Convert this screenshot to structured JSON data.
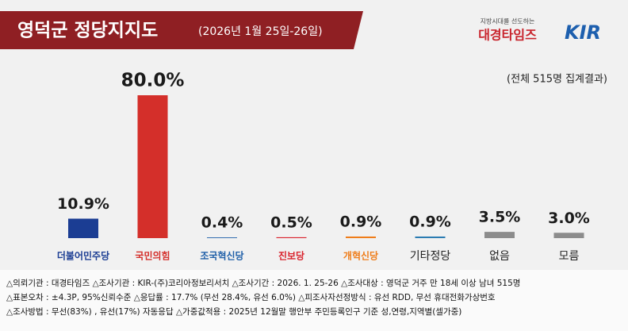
{
  "chart_data": {
    "type": "bar",
    "title": "영덕군 정당지지도",
    "subtitle": "(2026년 1월 25일-26일)",
    "logos": [
      "지방시대를 선도하는",
      "대경타임즈",
      "KIR"
    ],
    "note": "(전체 515명 집계결과)",
    "categories": [
      "더불어민주당",
      "국민의힘",
      "조국혁신당",
      "진보당",
      "개혁신당",
      "기타정당",
      "없음",
      "모름"
    ],
    "values": [
      10.9,
      80.0,
      0.4,
      0.5,
      0.9,
      0.9,
      3.5,
      3.0
    ],
    "value_labels": [
      "10.9%",
      "80.0%",
      "0.4%",
      "0.5%",
      "0.9%",
      "0.9%",
      "3.5%",
      "3.0%"
    ],
    "colors": [
      "#1b3d93",
      "#d42f2a",
      "#1f5fa8",
      "#d9232d",
      "#ef7d1a",
      "#2b7cb2",
      "#8c8c8c",
      "#8c8c8c"
    ],
    "label_colors": [
      "#1b3d93",
      "#d42f2a",
      "#1f5fa8",
      "#d9232d",
      "#ef7d1a",
      "#222222",
      "#222222",
      "#222222"
    ],
    "notes": [
      "△의뢰기관 : 대경타임즈   △조사기관 : KIR-(주)코리아정보리서치   △조사기간 : 2026. 1. 25-26   △조사대상 : 영덕군 거주 만 18세  이상 남녀 515명",
      "△표본오차 : ±4.3P, 95%신뢰수준   △응답률 : 17.7% (무선 28.4%, 유선 6.0%)   △피조사자선정방식 : 유선 RDD, 무선 휴대전화가상번호",
      "△조사방법 : 무선(83%) , 유선(17%) 자동응답   △가중값적용 : 2025년 12월말 행안부 주민등록인구 기준 성,연령,지역별(셀가중)"
    ]
  }
}
